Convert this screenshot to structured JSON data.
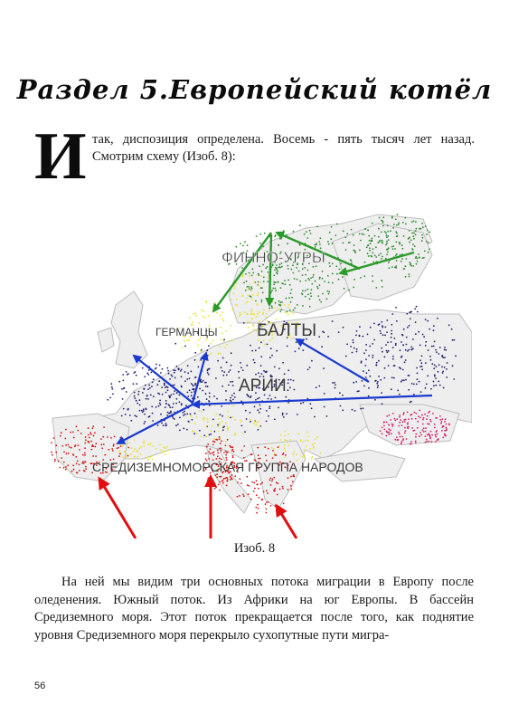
{
  "title": "Раздел 5.Европейский котёл",
  "dropcap": "И",
  "intro": "так, диспозиция определена. Восемь - пять тысяч лет назад. Смотрим схему (Изоб. 8):",
  "map": {
    "labels": {
      "finno_ugric": "ФИННО-УГРЫ",
      "germans": "ГЕРМАНЦЫ",
      "balts": "БАЛТЫ",
      "aryans": "АРИИ",
      "mediterranean": "СРЕДИЗЕМНОМОРСКАЯ ГРУППА НАРОДОВ"
    },
    "colors": {
      "land": "#f2f2f2",
      "sea": "#ffffff",
      "finno_ugric": "#2e8b2e",
      "germanic_baltic": "#e8e030",
      "aryan": "#1f1f6e",
      "mediterranean": "#d01818",
      "east_pink": "#d0246a",
      "arrow_green": "#2a9a2a",
      "arrow_blue": "#1a3ad0",
      "arrow_red": "#e01010"
    }
  },
  "caption": "Изоб. 8",
  "body": "На ней мы видим три основных потока миграции в Европу после оледенения. Южный поток. Из Африки на юг Европы. В бассейн Средиземного моря. Этот поток прекращается после того, как поднятие уровня Средиземного моря перекрыло сухопутные пути мигра-",
  "page_number": "56"
}
